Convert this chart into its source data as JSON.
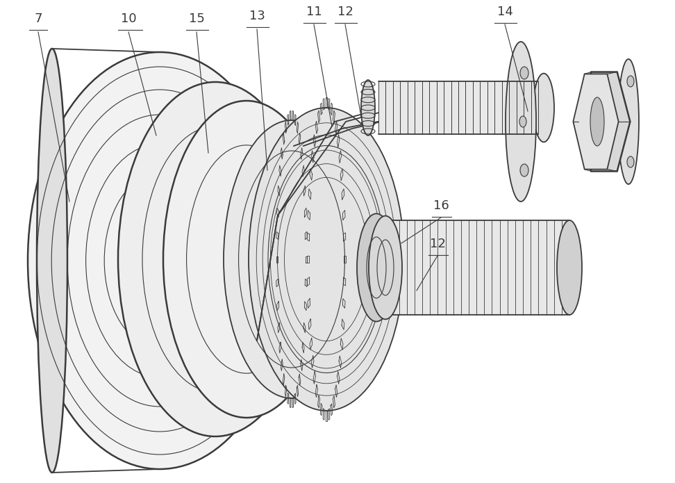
{
  "bg_color": "#ffffff",
  "lc": "#3a3a3a",
  "lw_main": 1.3,
  "lw_thick": 1.8,
  "lw_thin": 0.8,
  "fig_width": 9.72,
  "fig_height": 6.95
}
